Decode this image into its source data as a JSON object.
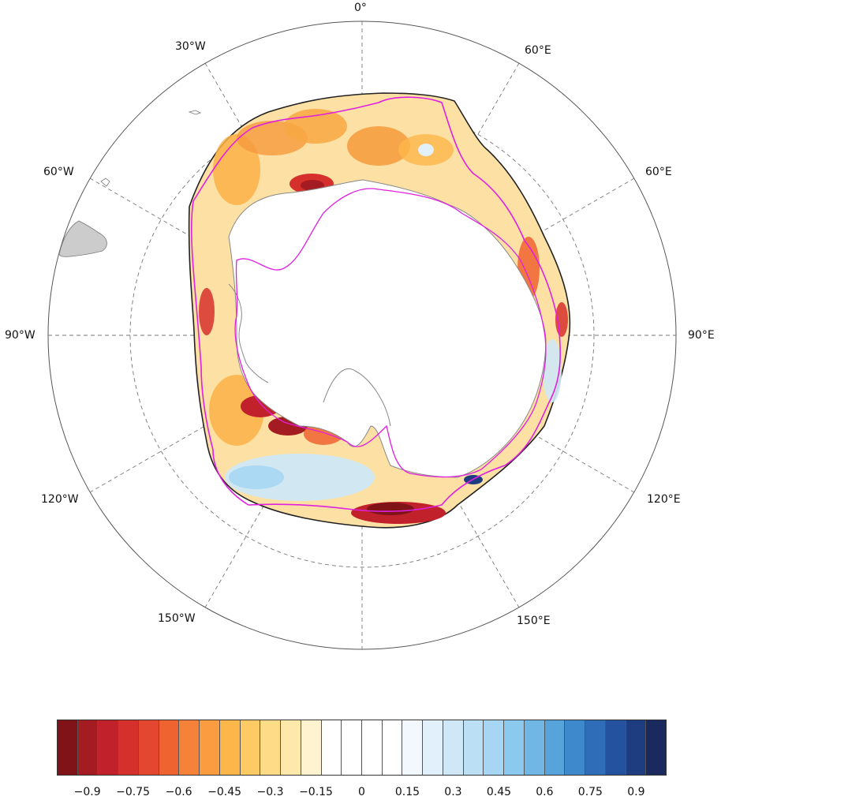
{
  "map": {
    "lon_labels": [
      {
        "id": "0",
        "text": "0°"
      },
      {
        "id": "30w",
        "text": "30°W"
      },
      {
        "id": "60e_top",
        "text": "60°E"
      },
      {
        "id": "60w",
        "text": "60°W"
      },
      {
        "id": "60e",
        "text": "60°E"
      },
      {
        "id": "90w",
        "text": "90°W"
      },
      {
        "id": "90e",
        "text": "90°E"
      },
      {
        "id": "120w",
        "text": "120°W"
      },
      {
        "id": "120e",
        "text": "120°E"
      },
      {
        "id": "150w",
        "text": "150°W"
      },
      {
        "id": "150e",
        "text": "150°E"
      }
    ],
    "colors": {
      "continent_fill": "#ffffff",
      "south_america_fill": "#cccccc",
      "coastline": "#888888",
      "graticule": "#777777",
      "magenta_contour": "#e020e0",
      "ice_edge_contour": "#222222"
    }
  },
  "colorbar": {
    "colors": [
      "#7f1318",
      "#a51b22",
      "#c1212a",
      "#d6302d",
      "#e4472f",
      "#ef6331",
      "#f6823a",
      "#fb9c40",
      "#fdb64a",
      "#fdca64",
      "#fedb86",
      "#fee8aa",
      "#fff3d0",
      "#ffffff",
      "#ffffff",
      "#ffffff",
      "#ffffff",
      "#f2f8fd",
      "#e1f0fa",
      "#cfe7f6",
      "#bbe0f5",
      "#a6d6f3",
      "#8cc9ef",
      "#71b7e6",
      "#57a3dc",
      "#3e88cc",
      "#2f6db8",
      "#24529e",
      "#1e3d80",
      "#1a2a5e"
    ],
    "tick_labels": [
      "−0.9",
      "−0.75",
      "−0.6",
      "−0.45",
      "−0.3",
      "−0.15",
      "0",
      "0.15",
      "0.3",
      "0.45",
      "0.6",
      "0.75",
      "0.9"
    ],
    "tick_values": [
      -0.9,
      -0.75,
      -0.6,
      -0.45,
      -0.3,
      -0.15,
      0,
      0.15,
      0.3,
      0.45,
      0.6,
      0.75,
      0.9
    ],
    "range": [
      -1.0,
      1.0
    ]
  }
}
